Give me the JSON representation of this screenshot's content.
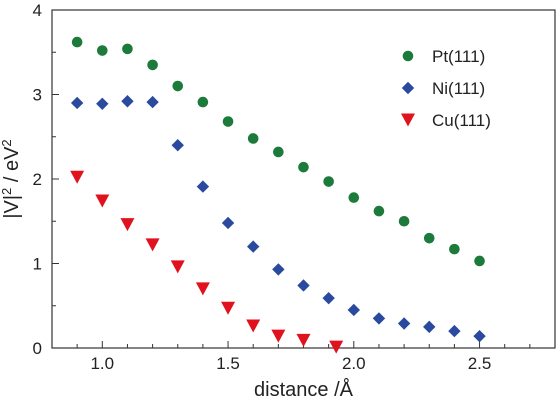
{
  "chart_data": {
    "type": "scatter",
    "xlabel": "distance /Å",
    "ylabel_parts": {
      "base": "|V|",
      "sup1": "2",
      "mid": " / eV",
      "sup2": "2"
    },
    "xlim": [
      0.8,
      2.8
    ],
    "ylim": [
      0,
      4
    ],
    "xticks": [
      "1.0",
      "1.5",
      "2.0",
      "2.5"
    ],
    "yticks": [
      "0",
      "1",
      "2",
      "3",
      "4"
    ],
    "grid": false,
    "legend_position": "top-right",
    "series": [
      {
        "name": "Pt(111)",
        "marker": "circle",
        "color": "#1c7a3b",
        "x": [
          0.9,
          1.0,
          1.1,
          1.2,
          1.3,
          1.4,
          1.5,
          1.6,
          1.7,
          1.8,
          1.9,
          2.0,
          2.1,
          2.2,
          2.3,
          2.4,
          2.5
        ],
        "y": [
          3.62,
          3.52,
          3.54,
          3.35,
          3.1,
          2.91,
          2.68,
          2.48,
          2.32,
          2.14,
          1.97,
          1.78,
          1.62,
          1.5,
          1.3,
          1.17,
          1.03
        ]
      },
      {
        "name": "Ni(111)",
        "marker": "diamond",
        "color": "#2a4aa0",
        "x": [
          0.9,
          1.0,
          1.1,
          1.2,
          1.3,
          1.4,
          1.5,
          1.6,
          1.7,
          1.8,
          1.9,
          2.0,
          2.1,
          2.2,
          2.3,
          2.4,
          2.5
        ],
        "y": [
          2.9,
          2.89,
          2.92,
          2.91,
          2.4,
          1.91,
          1.48,
          1.2,
          0.93,
          0.74,
          0.59,
          0.45,
          0.35,
          0.29,
          0.25,
          0.2,
          0.14
        ]
      },
      {
        "name": "Cu(111)",
        "marker": "triangle-down",
        "color": "#e0121e",
        "x": [
          0.9,
          1.0,
          1.1,
          1.2,
          1.3,
          1.4,
          1.5,
          1.6,
          1.7,
          1.8,
          1.93
        ],
        "y": [
          2.02,
          1.74,
          1.46,
          1.22,
          0.96,
          0.7,
          0.47,
          0.26,
          0.14,
          0.09,
          0.01
        ]
      }
    ]
  }
}
